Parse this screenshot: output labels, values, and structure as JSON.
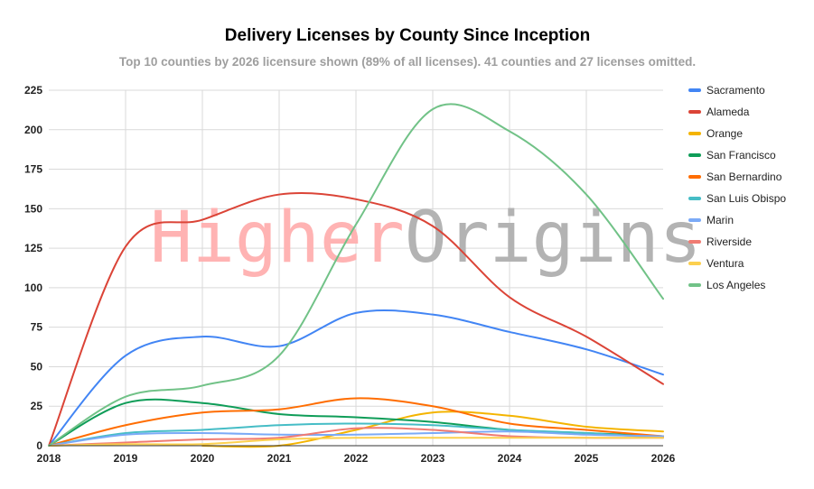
{
  "chart_data": {
    "type": "line",
    "title": "Delivery Licenses by County Since Inception",
    "subtitle": "Top 10 counties by 2026 licensure shown (89% of all licenses). 41 counties and 27 licenses omitted.",
    "xlabel": "",
    "ylabel": "",
    "x": [
      "2018",
      "2019",
      "2020",
      "2021",
      "2022",
      "2023",
      "2024",
      "2025",
      "2026"
    ],
    "ylim": [
      0,
      225
    ],
    "yticks": [
      0,
      25,
      50,
      75,
      100,
      125,
      150,
      175,
      200,
      225
    ],
    "grid": true,
    "legend_position": "right",
    "watermark": {
      "part1": "Higher",
      "part2": "Origins",
      "color1": "#ffb3b3",
      "color2": "#b3b3b3"
    },
    "series": [
      {
        "name": "Sacramento",
        "color": "#4285f4",
        "values": [
          0,
          57,
          69,
          63,
          84,
          83,
          72,
          61,
          45
        ]
      },
      {
        "name": "Alameda",
        "color": "#db4437",
        "values": [
          0,
          126,
          143,
          159,
          156,
          139,
          94,
          69,
          39
        ]
      },
      {
        "name": "Orange",
        "color": "#f4b400",
        "values": [
          null,
          null,
          0,
          0,
          10,
          21,
          19,
          12,
          9
        ]
      },
      {
        "name": "San Francisco",
        "color": "#0f9d58",
        "values": [
          0,
          27,
          27,
          20,
          18,
          15,
          10,
          8,
          6
        ]
      },
      {
        "name": "San Bernardino",
        "color": "#ff6d01",
        "values": [
          0,
          13,
          21,
          23,
          30,
          25,
          14,
          10,
          6
        ]
      },
      {
        "name": "San Luis Obispo",
        "color": "#46bdc6",
        "values": [
          0,
          8,
          10,
          13,
          14,
          13,
          10,
          8,
          5
        ]
      },
      {
        "name": "Marin",
        "color": "#7baaf7",
        "values": [
          0,
          7,
          8,
          7,
          7,
          8,
          9,
          7,
          6
        ]
      },
      {
        "name": "Riverside",
        "color": "#f07b72",
        "values": [
          0,
          2,
          4,
          5,
          11,
          10,
          6,
          5,
          5
        ]
      },
      {
        "name": "Ventura",
        "color": "#fcd04f",
        "values": [
          0,
          1,
          1,
          4,
          5,
          5,
          5,
          5,
          5
        ]
      },
      {
        "name": "Los Angeles",
        "color": "#71c287",
        "values": [
          0,
          31,
          38,
          57,
          140,
          213,
          199,
          159,
          93
        ]
      }
    ]
  }
}
